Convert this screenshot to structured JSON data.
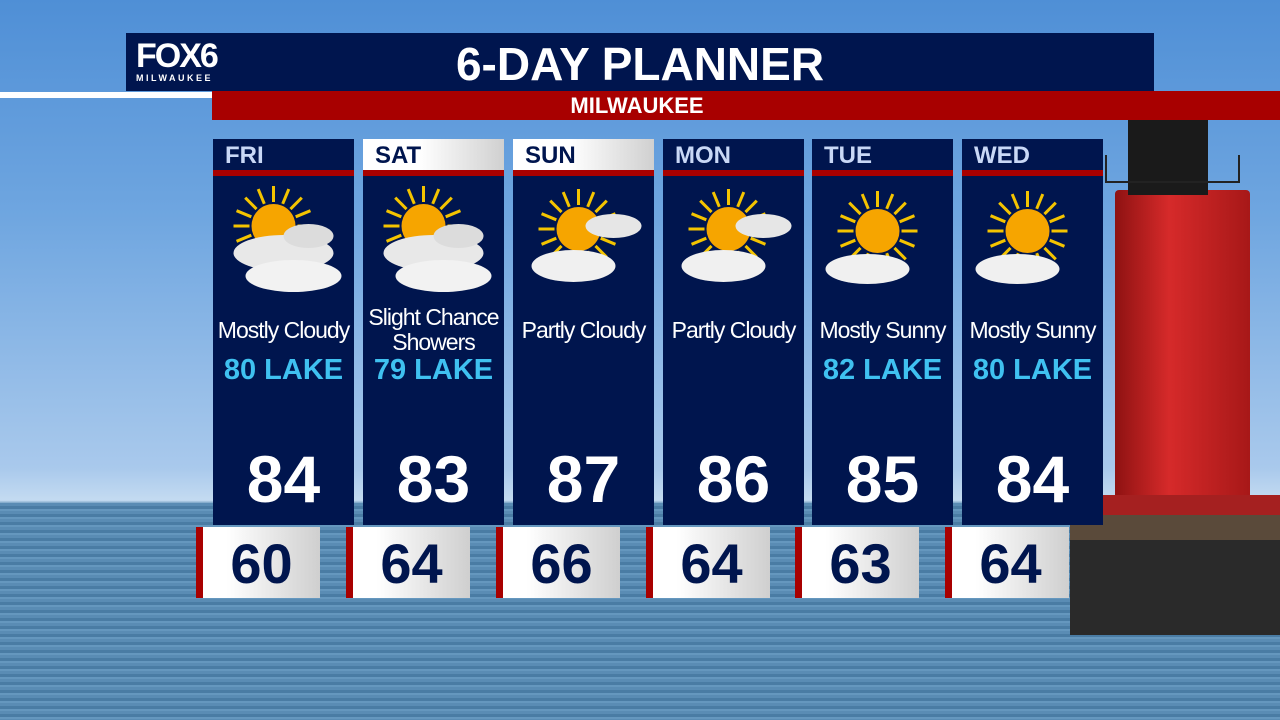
{
  "brand": {
    "logo_main": "FOX6",
    "logo_sub": "MILWAUKEE"
  },
  "header": {
    "title": "6-DAY PLANNER",
    "location": "MILWAUKEE"
  },
  "colors": {
    "navy": "#00154e",
    "red": "#a80000",
    "lake_text": "#3fc1f0"
  },
  "days": [
    {
      "day": "FRI",
      "icon": "mostly-cloudy-icon",
      "condition": "Mostly Cloudy",
      "lake": "80 LAKE",
      "high": "84",
      "low": "60",
      "header_style": "dark"
    },
    {
      "day": "SAT",
      "icon": "mostly-cloudy-icon",
      "condition": "Slight Chance Showers",
      "lake": "79 LAKE",
      "high": "83",
      "low": "64",
      "header_style": "light"
    },
    {
      "day": "SUN",
      "icon": "partly-cloudy-icon",
      "condition": "Partly Cloudy",
      "lake": "",
      "high": "87",
      "low": "66",
      "header_style": "light"
    },
    {
      "day": "MON",
      "icon": "partly-cloudy-icon",
      "condition": "Partly Cloudy",
      "lake": "",
      "high": "86",
      "low": "64",
      "header_style": "dark"
    },
    {
      "day": "TUE",
      "icon": "mostly-sunny-icon",
      "condition": "Mostly Sunny",
      "lake": "82 LAKE",
      "high": "85",
      "low": "63",
      "header_style": "dark"
    },
    {
      "day": "WED",
      "icon": "mostly-sunny-icon",
      "condition": "Mostly Sunny",
      "lake": "80 LAKE",
      "high": "84",
      "low": "64",
      "header_style": "dark"
    }
  ]
}
